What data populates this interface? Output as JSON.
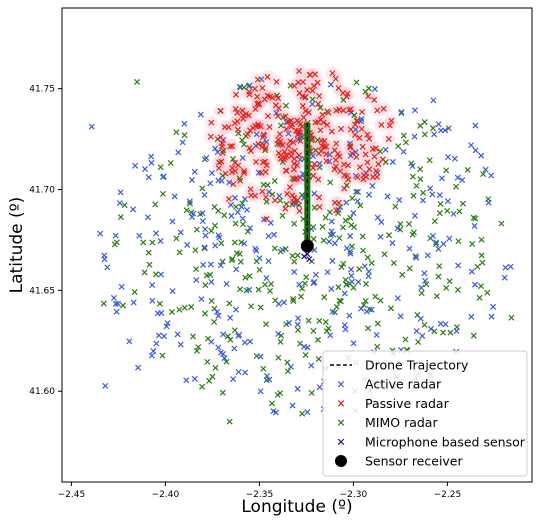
{
  "chart_data": {
    "type": "scatter",
    "title": "",
    "xlabel": "Longitude (º)",
    "ylabel": "Latitude (º)",
    "xlim": [
      -2.455,
      -2.205
    ],
    "ylim": [
      41.555,
      41.79
    ],
    "xticks": [
      -2.45,
      -2.4,
      -2.35,
      -2.3,
      -2.25
    ],
    "xtick_labels": [
      "−2.45",
      "−2.40",
      "−2.35",
      "−2.30",
      "−2.25"
    ],
    "yticks": [
      41.6,
      41.65,
      41.7,
      41.75
    ],
    "ytick_labels": [
      "41.60",
      "41.65",
      "41.70",
      "41.75"
    ],
    "grid": false,
    "legend_position": "bottom-right",
    "series": [
      {
        "name": "Drone Trajectory",
        "kind": "line",
        "color": "#000000",
        "points": [
          [
            -2.3245,
            41.672
          ],
          [
            -2.3247,
            41.733
          ]
        ]
      },
      {
        "name": "Active radar",
        "kind": "scatter",
        "marker": "x",
        "color": "#3a5bd9",
        "count_approx": 310,
        "cloud": {
          "center": [
            -2.325,
            41.672
          ],
          "x_spread": 0.11,
          "y_spread": 0.085,
          "seed": 11
        }
      },
      {
        "name": "Passive radar",
        "kind": "scatter",
        "marker": "x",
        "color": "#e0231c",
        "count_approx": 260,
        "cloud": {
          "center": [
            -2.328,
            41.725
          ],
          "x_spread": 0.05,
          "y_spread": 0.035,
          "seed": 23
        }
      },
      {
        "name": "MIMO radar",
        "kind": "scatter",
        "marker": "x",
        "color": "#2a7d12",
        "count_approx": 330,
        "cloud": {
          "center": [
            -2.325,
            41.672
          ],
          "x_spread": 0.105,
          "y_spread": 0.085,
          "seed": 37
        }
      },
      {
        "name": "Microphone based sensor",
        "kind": "scatter",
        "marker": "x",
        "color": "#2b0a8a",
        "points": [
          [
            -2.3245,
            41.668
          ],
          [
            -2.3235,
            41.6655
          ],
          [
            -2.3262,
            41.6668
          ]
        ]
      },
      {
        "name": "Sensor receiver",
        "kind": "point",
        "marker": "circle",
        "color": "#000000",
        "points": [
          [
            -2.3245,
            41.672
          ]
        ]
      }
    ],
    "colors": {
      "active": "#3a5bd9",
      "passive": "#e0231c",
      "passive_glow": "#f7b9c4",
      "mimo": "#2a7d12",
      "microphone": "#2b0a8a",
      "receiver": "#000000",
      "trajectory_fill": "#1f6b12"
    }
  }
}
